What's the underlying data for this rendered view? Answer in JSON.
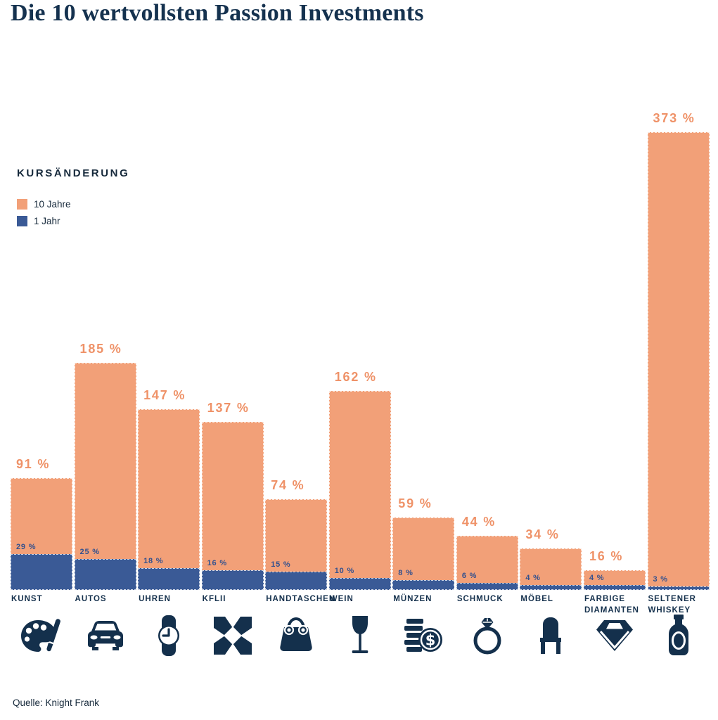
{
  "title": "Die 10 wertvollsten Passion Investments",
  "source": "Quelle: Knight Frank",
  "legend": {
    "heading": "KURSÄNDERUNG",
    "items": [
      {
        "label": "10 Jahre",
        "color": "#F2A078"
      },
      {
        "label": "1 Jahr",
        "color": "#3A5A96"
      }
    ]
  },
  "colors": {
    "accent_orange": "#F2A078",
    "accent_blue": "#3A5A96",
    "navy": "#14304C",
    "title_navy": "#15324F",
    "label_orange": "#EF9268",
    "label_blue": "#33518E"
  },
  "chart_data": {
    "type": "bar",
    "title": "Die 10 wertvollsten Passion Investments",
    "xlabel": "",
    "ylabel": "Kursänderung",
    "ylim": [
      0,
      373
    ],
    "grid": false,
    "legend_position": "left",
    "value_suffix": " %",
    "categories": [
      "Kunst",
      "Autos",
      "Uhren",
      "KFLII",
      "Handtaschen",
      "Wein",
      "Münzen",
      "Schmuck",
      "Möbel",
      "Farbige Diamanten",
      "Seltener Whiskey"
    ],
    "series": [
      {
        "name": "10 Jahre",
        "color": "#F2A078",
        "values": [
          91,
          185,
          147,
          137,
          74,
          162,
          59,
          44,
          34,
          16,
          373
        ]
      },
      {
        "name": "1 Jahr",
        "color": "#3A5A96",
        "values": [
          29,
          25,
          18,
          16,
          15,
          10,
          8,
          6,
          4,
          4,
          3
        ]
      }
    ],
    "icons": [
      "palette-icon",
      "car-icon",
      "watch-icon",
      "kflii-logo-icon",
      "handbag-icon",
      "wine-glass-icon",
      "coins-icon",
      "ring-icon",
      "chair-icon",
      "diamond-icon",
      "whiskey-bottle-icon"
    ]
  }
}
